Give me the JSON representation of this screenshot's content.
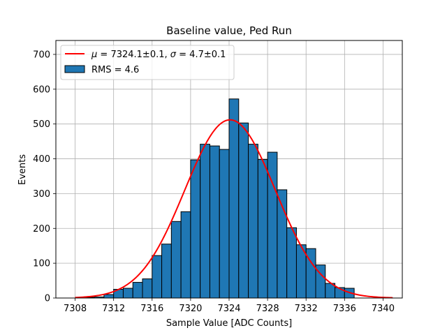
{
  "chart_data": {
    "type": "bar",
    "title": "Baseline value, Ped Run",
    "xlabel": "Sample Value [ADC Counts]",
    "ylabel": "Events",
    "xlim": [
      7306,
      7342
    ],
    "ylim": [
      0,
      740
    ],
    "xticks": [
      7308,
      7312,
      7316,
      7320,
      7324,
      7328,
      7332,
      7336,
      7340
    ],
    "yticks": [
      0,
      100,
      200,
      300,
      400,
      500,
      600,
      700
    ],
    "grid": true,
    "legend_position": "top-left",
    "histogram": {
      "name": "RMS = 4.6",
      "color": "#1f77b4",
      "edge_color": "#000000",
      "bin_width": 1,
      "bin_starts": [
        7309,
        7310,
        7311,
        7312,
        7313,
        7314,
        7315,
        7316,
        7317,
        7318,
        7319,
        7320,
        7321,
        7322,
        7323,
        7324,
        7325,
        7326,
        7327,
        7328,
        7329,
        7330,
        7331,
        7332,
        7333,
        7334,
        7335,
        7336
      ],
      "counts": [
        2,
        3,
        10,
        25,
        28,
        45,
        55,
        122,
        155,
        220,
        248,
        397,
        442,
        437,
        427,
        572,
        503,
        442,
        398,
        419,
        311,
        202,
        153,
        142,
        95,
        42,
        30,
        28
      ]
    },
    "fit_curve": {
      "name_prefix_mu": "μ",
      "name_value_mu": " = 7324.1±0.1, ",
      "name_prefix_sigma": "σ",
      "name_value_sigma": " = 4.7±0.1",
      "color": "#ff0000",
      "mu": 7324.1,
      "sigma": 4.7,
      "amplitude": 512,
      "x_range": [
        7308,
        7341
      ]
    }
  }
}
